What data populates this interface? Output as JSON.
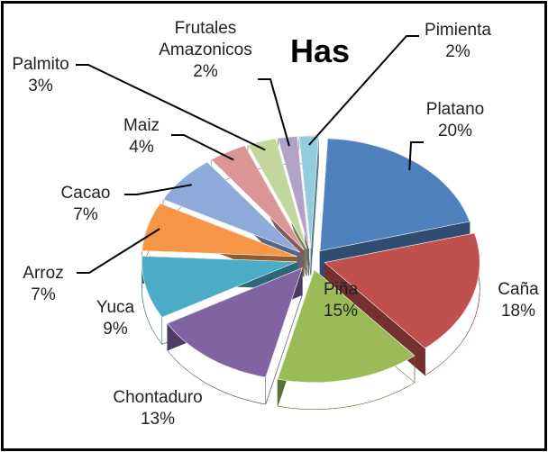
{
  "chart_data": {
    "type": "pie",
    "title": "Has",
    "categories": [
      "Platano",
      "Caña",
      "Piña",
      "Chontaduro",
      "Yuca",
      "Arroz",
      "Cacao",
      "Maiz",
      "Palmito",
      "Frutales Amazonicos",
      "Pimienta"
    ],
    "values": [
      20,
      18,
      15,
      13,
      9,
      7,
      7,
      4,
      3,
      2,
      2
    ],
    "value_labels": [
      "20%",
      "18%",
      "15%",
      "13%",
      "9%",
      "7%",
      "7%",
      "4%",
      "3%",
      "2%",
      "2%"
    ],
    "colors": [
      "#4f81bd",
      "#c0504d",
      "#9bbb59",
      "#8064a2",
      "#4bacc6",
      "#f79646",
      "#8eaadb",
      "#d99694",
      "#c3d69b",
      "#b3a2c7",
      "#93cddd"
    ]
  }
}
